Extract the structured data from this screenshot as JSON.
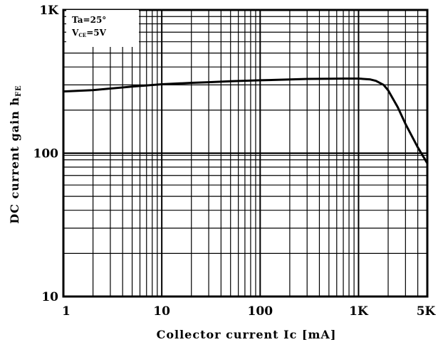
{
  "chart_data": {
    "type": "line",
    "xscale": "log",
    "yscale": "log",
    "xlim": [
      1,
      5000
    ],
    "ylim": [
      10,
      1000
    ],
    "xlabel": "Collector current Ic [mA]",
    "ylabel": "DC current gain hFE",
    "ylabel_main": "DC current gain h",
    "ylabel_sub": "FE",
    "x_ticks": [
      1,
      10,
      100,
      1000,
      5000
    ],
    "x_tick_labels": [
      "1",
      "10",
      "100",
      "1K",
      "5K"
    ],
    "y_ticks": [
      10,
      100,
      1000
    ],
    "y_tick_labels": [
      "10",
      "100",
      "1K"
    ],
    "grid": true,
    "legend_position": "top-left",
    "conditions": {
      "ta": "Ta=25°",
      "vce_v": "V",
      "vce_sub": "CE",
      "vce_rest": "=5V"
    },
    "series": [
      {
        "x": [
          1,
          2,
          5,
          10,
          20,
          30,
          50,
          100,
          200,
          300,
          500,
          700,
          1000,
          1300,
          1500,
          1800,
          2000,
          2500,
          3000,
          4000,
          5000
        ],
        "y": [
          270,
          276,
          292,
          303,
          310,
          313,
          318,
          323,
          327,
          330,
          331,
          332,
          332,
          328,
          320,
          300,
          275,
          210,
          160,
          110,
          85
        ]
      }
    ]
  }
}
